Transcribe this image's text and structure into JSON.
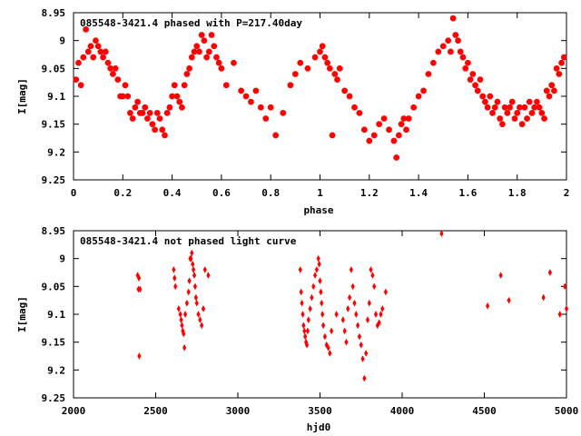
{
  "colors": {
    "point": "#ff0000",
    "axis": "#000000",
    "background": "#ffffff"
  },
  "chart_data": [
    {
      "type": "scatter",
      "title": "085548-3421.4 phased with P=217.40day",
      "xlabel": "phase",
      "ylabel": "I[mag]",
      "xlim": [
        0,
        2
      ],
      "ylim": [
        9.25,
        8.95
      ],
      "y_inverted": true,
      "grid": false,
      "xticks": [
        "0",
        "0.2",
        "0.4",
        "0.6",
        "0.8",
        "1",
        "1.2",
        "1.4",
        "1.6",
        "1.8",
        "2"
      ],
      "yticks": [
        "8.95",
        "9",
        "9.05",
        "9.1",
        "9.15",
        "9.2",
        "9.25"
      ],
      "series": [
        {
          "x": [
            0.01,
            0.02,
            0.03,
            0.04,
            0.05,
            0.06,
            0.07,
            0.08,
            0.09,
            0.1,
            0.11,
            0.12,
            0.13,
            0.14,
            0.15,
            0.16,
            0.17,
            0.18,
            0.19,
            0.2,
            0.21,
            0.22,
            0.23,
            0.24,
            0.25,
            0.26,
            0.27,
            0.28,
            0.29,
            0.3,
            0.31,
            0.32,
            0.33,
            0.34,
            0.35,
            0.36,
            0.37,
            0.38,
            0.39,
            0.4,
            0.41,
            0.42,
            0.43,
            0.44,
            0.45,
            0.46,
            0.47,
            0.48,
            0.49,
            0.5,
            0.51,
            0.52,
            0.53,
            0.54,
            0.55,
            0.56,
            0.57,
            0.58,
            0.59,
            0.6,
            0.62,
            0.65,
            0.68,
            0.7,
            0.72,
            0.74,
            0.76,
            0.78,
            0.8,
            0.82,
            0.85,
            0.88,
            0.9,
            0.92,
            0.95,
            0.98,
            1.0,
            1.01,
            1.02,
            1.03,
            1.04,
            1.05,
            1.06,
            1.07,
            1.08,
            1.1,
            1.12,
            1.14,
            1.16,
            1.18,
            1.2,
            1.22,
            1.24,
            1.26,
            1.28,
            1.3,
            1.31,
            1.32,
            1.33,
            1.34,
            1.35,
            1.36,
            1.38,
            1.4,
            1.42,
            1.44,
            1.46,
            1.48,
            1.5,
            1.52,
            1.53,
            1.54,
            1.55,
            1.56,
            1.57,
            1.58,
            1.59,
            1.6,
            1.61,
            1.62,
            1.63,
            1.64,
            1.65,
            1.66,
            1.67,
            1.68,
            1.69,
            1.7,
            1.71,
            1.72,
            1.73,
            1.74,
            1.75,
            1.76,
            1.77,
            1.78,
            1.79,
            1.8,
            1.81,
            1.82,
            1.83,
            1.84,
            1.85,
            1.86,
            1.87,
            1.88,
            1.89,
            1.9,
            1.91,
            1.92,
            1.93,
            1.94,
            1.95,
            1.96,
            1.97,
            1.98,
            1.99
          ],
          "y": [
            9.07,
            9.04,
            9.08,
            9.03,
            8.98,
            9.02,
            9.01,
            9.03,
            9.0,
            9.01,
            9.02,
            9.03,
            9.02,
            9.04,
            9.05,
            9.06,
            9.05,
            9.07,
            9.1,
            9.1,
            9.08,
            9.1,
            9.13,
            9.14,
            9.12,
            9.11,
            9.13,
            9.13,
            9.12,
            9.14,
            9.13,
            9.15,
            9.16,
            9.13,
            9.14,
            9.16,
            9.17,
            9.13,
            9.12,
            9.1,
            9.08,
            9.1,
            9.11,
            9.12,
            9.08,
            9.06,
            9.05,
            9.03,
            9.02,
            9.01,
            9.02,
            8.99,
            9.0,
            9.03,
            9.02,
            8.99,
            9.01,
            9.03,
            9.04,
            9.05,
            9.08,
            9.04,
            9.09,
            9.1,
            9.11,
            9.09,
            9.12,
            9.14,
            9.12,
            9.17,
            9.13,
            9.08,
            9.06,
            9.04,
            9.05,
            9.03,
            9.02,
            9.01,
            9.03,
            9.04,
            9.05,
            9.17,
            9.06,
            9.07,
            9.05,
            9.09,
            9.1,
            9.12,
            9.13,
            9.16,
            9.18,
            9.17,
            9.15,
            9.14,
            9.16,
            9.18,
            9.21,
            9.17,
            9.15,
            9.14,
            9.16,
            9.14,
            9.12,
            9.1,
            9.09,
            9.06,
            9.04,
            9.02,
            9.01,
            9.0,
            9.02,
            8.96,
            8.99,
            9.0,
            9.02,
            9.03,
            9.05,
            9.04,
            9.07,
            9.06,
            9.08,
            9.09,
            9.07,
            9.1,
            9.11,
            9.12,
            9.1,
            9.13,
            9.12,
            9.11,
            9.14,
            9.15,
            9.12,
            9.13,
            9.12,
            9.11,
            9.14,
            9.13,
            9.12,
            9.15,
            9.12,
            9.14,
            9.11,
            9.13,
            9.12,
            9.11,
            9.12,
            9.13,
            9.14,
            9.09,
            9.1,
            9.08,
            9.09,
            9.05,
            9.06,
            9.04,
            9.03
          ]
        }
      ]
    },
    {
      "type": "scatter",
      "title": "085548-3421.4 not phased light curve",
      "xlabel": "hjd0",
      "ylabel": "I[mag]",
      "xlim": [
        2000,
        5000
      ],
      "ylim": [
        9.25,
        8.95
      ],
      "y_inverted": true,
      "grid": false,
      "xticks": [
        "2000",
        "2500",
        "3000",
        "3500",
        "4000",
        "4500",
        "5000"
      ],
      "yticks": [
        "8.95",
        "9",
        "9.05",
        "9.1",
        "9.15",
        "9.2",
        "9.25"
      ],
      "series": [
        {
          "x": [
            2390,
            2395,
            2400,
            2405,
            2398,
            2610,
            2615,
            2620,
            2640,
            2650,
            2655,
            2660,
            2665,
            2670,
            2675,
            2680,
            2690,
            2700,
            2705,
            2710,
            2715,
            2720,
            2725,
            2730,
            2735,
            2740,
            2745,
            2750,
            2760,
            2770,
            2780,
            2790,
            2800,
            2820,
            3380,
            3385,
            3390,
            3395,
            3400,
            3405,
            3410,
            3415,
            3420,
            3425,
            3430,
            3440,
            3450,
            3460,
            3470,
            3480,
            3490,
            3495,
            3500,
            3505,
            3510,
            3515,
            3520,
            3530,
            3540,
            3550,
            3560,
            3570,
            3600,
            3640,
            3650,
            3660,
            3670,
            3680,
            3690,
            3700,
            3710,
            3720,
            3730,
            3740,
            3750,
            3760,
            3770,
            3780,
            3790,
            3800,
            3810,
            3820,
            3830,
            3840,
            3850,
            3860,
            3870,
            3880,
            3900,
            4240,
            4520,
            4600,
            4650,
            4860,
            4900,
            4960,
            4990,
            5000
          ],
          "y": [
            9.03,
            9.055,
            9.175,
            9.055,
            9.035,
            9.02,
            9.035,
            9.05,
            9.09,
            9.1,
            9.11,
            9.12,
            9.13,
            9.135,
            9.16,
            9.1,
            9.08,
            9.06,
            9.04,
            9.0,
            9.0,
            8.99,
            9.01,
            9.02,
            9.03,
            9.05,
            9.07,
            9.08,
            9.1,
            9.11,
            9.12,
            9.09,
            9.02,
            9.03,
            9.02,
            9.06,
            9.08,
            9.1,
            9.12,
            9.13,
            9.14,
            9.15,
            9.155,
            9.13,
            9.11,
            9.09,
            9.07,
            9.05,
            9.03,
            9.02,
            9.0,
            9.01,
            9.04,
            9.06,
            9.08,
            9.1,
            9.12,
            9.14,
            9.155,
            9.16,
            9.17,
            9.13,
            9.1,
            9.11,
            9.13,
            9.15,
            9.09,
            9.07,
            9.02,
            9.05,
            9.08,
            9.1,
            9.12,
            9.14,
            9.155,
            9.18,
            9.215,
            9.17,
            9.11,
            9.08,
            9.02,
            9.03,
            9.05,
            9.1,
            9.12,
            9.115,
            9.1,
            9.09,
            9.06,
            8.955,
            9.085,
            9.03,
            9.075,
            9.07,
            9.025,
            9.1,
            9.05,
            9.09
          ]
        }
      ]
    }
  ]
}
